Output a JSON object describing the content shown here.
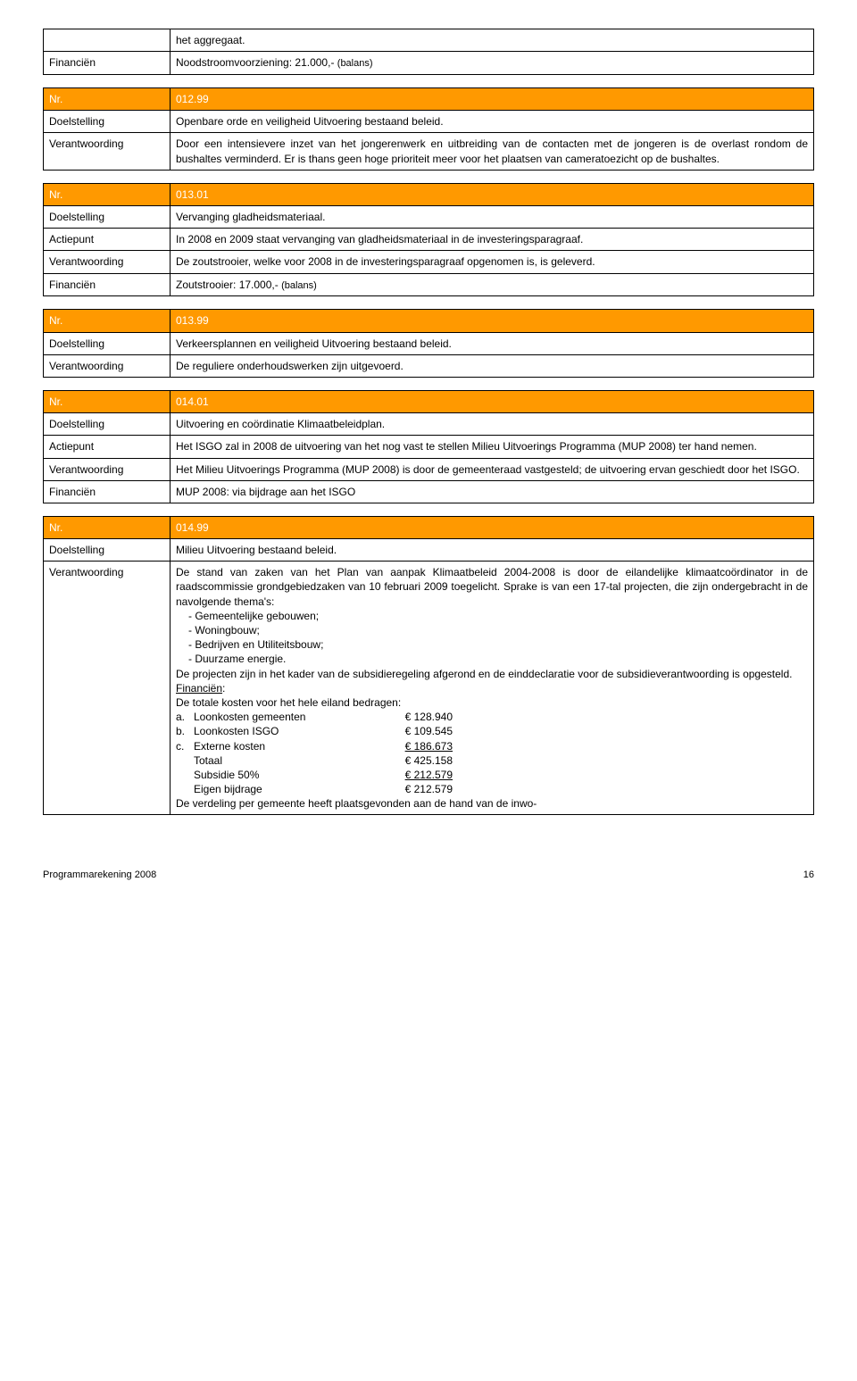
{
  "labels": {
    "nr": "Nr.",
    "doelstelling": "Doelstelling",
    "verantwoording": "Verantwoording",
    "financien": "Financiën",
    "actiepunt": "Actiepunt"
  },
  "intro": {
    "aggregaat": "het aggregaat.",
    "financien_label": "Financiën",
    "noodstroom_pre": "Noodstroomvoorziening: 21.000,- ",
    "noodstroom_note": "(balans)"
  },
  "s01299": {
    "nr": "012.99",
    "doel": "Openbare orde en veiligheid Uitvoering bestaand beleid.",
    "verant": "Door een intensievere inzet van het jongerenwerk en uitbreiding van de contacten met de jongeren is de overlast rondom de bushaltes verminderd. Er is thans geen hoge prioriteit meer voor het plaatsen van cameratoezicht op de bushaltes."
  },
  "s01301": {
    "nr": "013.01",
    "doel": "Vervanging gladheidsmateriaal.",
    "actie": "In 2008 en 2009 staat vervanging van gladheidsmateriaal in de investeringsparagraaf.",
    "verant": "De zoutstrooier, welke voor 2008 in de investeringsparagraaf opgenomen is, is geleverd.",
    "fin_pre": "Zoutstrooier: 17.000,- ",
    "fin_note": "(balans)"
  },
  "s01399": {
    "nr": "013.99",
    "doel": "Verkeersplannen en veiligheid Uitvoering bestaand beleid.",
    "verant": "De reguliere onderhoudswerken zijn uitgevoerd."
  },
  "s01401": {
    "nr": "014.01",
    "doel": "Uitvoering en coördinatie Klimaatbeleidplan.",
    "actie": "Het ISGO zal in 2008 de uitvoering van het nog vast te stellen Milieu Uitvoerings Programma (MUP 2008) ter hand nemen.",
    "verant": "Het Milieu Uitvoerings Programma (MUP 2008) is door de gemeenteraad vastgesteld; de uitvoering ervan geschiedt door het ISGO.",
    "fin": "MUP 2008: via bijdrage aan het ISGO"
  },
  "s01499": {
    "nr": "014.99",
    "doel": "Milieu Uitvoering bestaand beleid.",
    "p1": "De stand van zaken van het Plan van aanpak Klimaatbeleid 2004-2008 is door de eilandelijke klimaatcoördinator in de raadscommissie grondgebiedzaken van 10 februari 2009 toegelicht. Sprake is van een 17-tal projecten, die zijn ondergebracht in de navolgende thema's:",
    "bullets": [
      "Gemeentelijke gebouwen;",
      "Woningbouw;",
      "Bedrijven en Utiliteitsbouw;",
      "Duurzame energie."
    ],
    "p2": "De projecten zijn in het kader van de subsidieregeling afgerond en de einddeclaratie voor de subsidieverantwoording is opgesteld.",
    "fin_label": "Financiën",
    "p3": "De totale kosten voor het hele eiland bedragen:",
    "costs": [
      {
        "m": "a.",
        "label": "Loonkosten gemeenten",
        "amount": "€ 128.940",
        "uline": false
      },
      {
        "m": "b.",
        "label": "Loonkosten ISGO",
        "amount": "€ 109.545",
        "uline": false
      },
      {
        "m": "c.",
        "label": "Externe kosten",
        "amount": "€ 186.673",
        "uline": true
      },
      {
        "m": "",
        "label": "Totaal",
        "amount": "€ 425.158",
        "uline": false
      },
      {
        "m": "",
        "label": "Subsidie 50%",
        "amount": "€ 212.579",
        "uline": true
      },
      {
        "m": "",
        "label": "Eigen bijdrage",
        "amount": "€ 212.579",
        "uline": false
      }
    ],
    "p4": "De verdeling per gemeente heeft plaatsgevonden aan de hand van de inwo-"
  },
  "footer": {
    "title": "Programmarekening 2008",
    "page": "16"
  }
}
